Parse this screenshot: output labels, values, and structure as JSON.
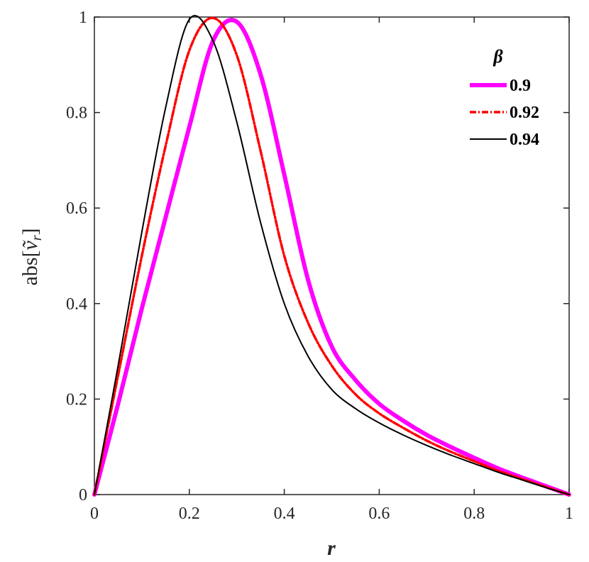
{
  "chart_data": {
    "type": "line",
    "xlabel": "r",
    "ylabel_prefix": "abs[",
    "ylabel_var": "ṽ",
    "ylabel_sub": "r",
    "ylabel_suffix": "]",
    "xlim": [
      0,
      1
    ],
    "ylim": [
      0,
      1
    ],
    "xticks": [
      0,
      0.2,
      0.4,
      0.6,
      0.8,
      1
    ],
    "xtick_labels": [
      "0",
      "0.2",
      "0.4",
      "0.6",
      "0.8",
      "1"
    ],
    "yticks": [
      0,
      0.2,
      0.4,
      0.6,
      0.8,
      1
    ],
    "ytick_labels": [
      "0",
      "0.2",
      "0.4",
      "0.6",
      "0.8",
      "1"
    ],
    "grid": false,
    "legend": {
      "title": "β",
      "placement": "top-right"
    },
    "x": [
      0,
      0.05,
      0.1,
      0.15,
      0.2,
      0.25,
      0.3,
      0.35,
      0.4,
      0.45,
      0.5,
      0.55,
      0.6,
      0.65,
      0.7,
      0.75,
      0.8,
      0.85,
      0.9,
      0.95,
      1.0
    ],
    "series": [
      {
        "name": "0.9",
        "color": "#ff00ff",
        "style": "solid-thick",
        "values": [
          0,
          0.19,
          0.39,
          0.58,
          0.77,
          0.95,
          0.99,
          0.88,
          0.67,
          0.45,
          0.31,
          0.24,
          0.19,
          0.155,
          0.125,
          0.1,
          0.077,
          0.055,
          0.036,
          0.018,
          0
        ]
      },
      {
        "name": "0.92",
        "color": "#ff0000",
        "style": "dashdot",
        "values": [
          0,
          0.25,
          0.5,
          0.73,
          0.93,
          0.998,
          0.92,
          0.72,
          0.5,
          0.36,
          0.27,
          0.21,
          0.17,
          0.14,
          0.113,
          0.09,
          0.07,
          0.05,
          0.033,
          0.016,
          0
        ]
      },
      {
        "name": "0.94",
        "color": "#000000",
        "style": "solid-thin",
        "values": [
          0,
          0.27,
          0.55,
          0.81,
          0.995,
          0.95,
          0.78,
          0.57,
          0.4,
          0.29,
          0.22,
          0.18,
          0.15,
          0.125,
          0.103,
          0.083,
          0.065,
          0.047,
          0.031,
          0.015,
          0
        ]
      }
    ]
  }
}
